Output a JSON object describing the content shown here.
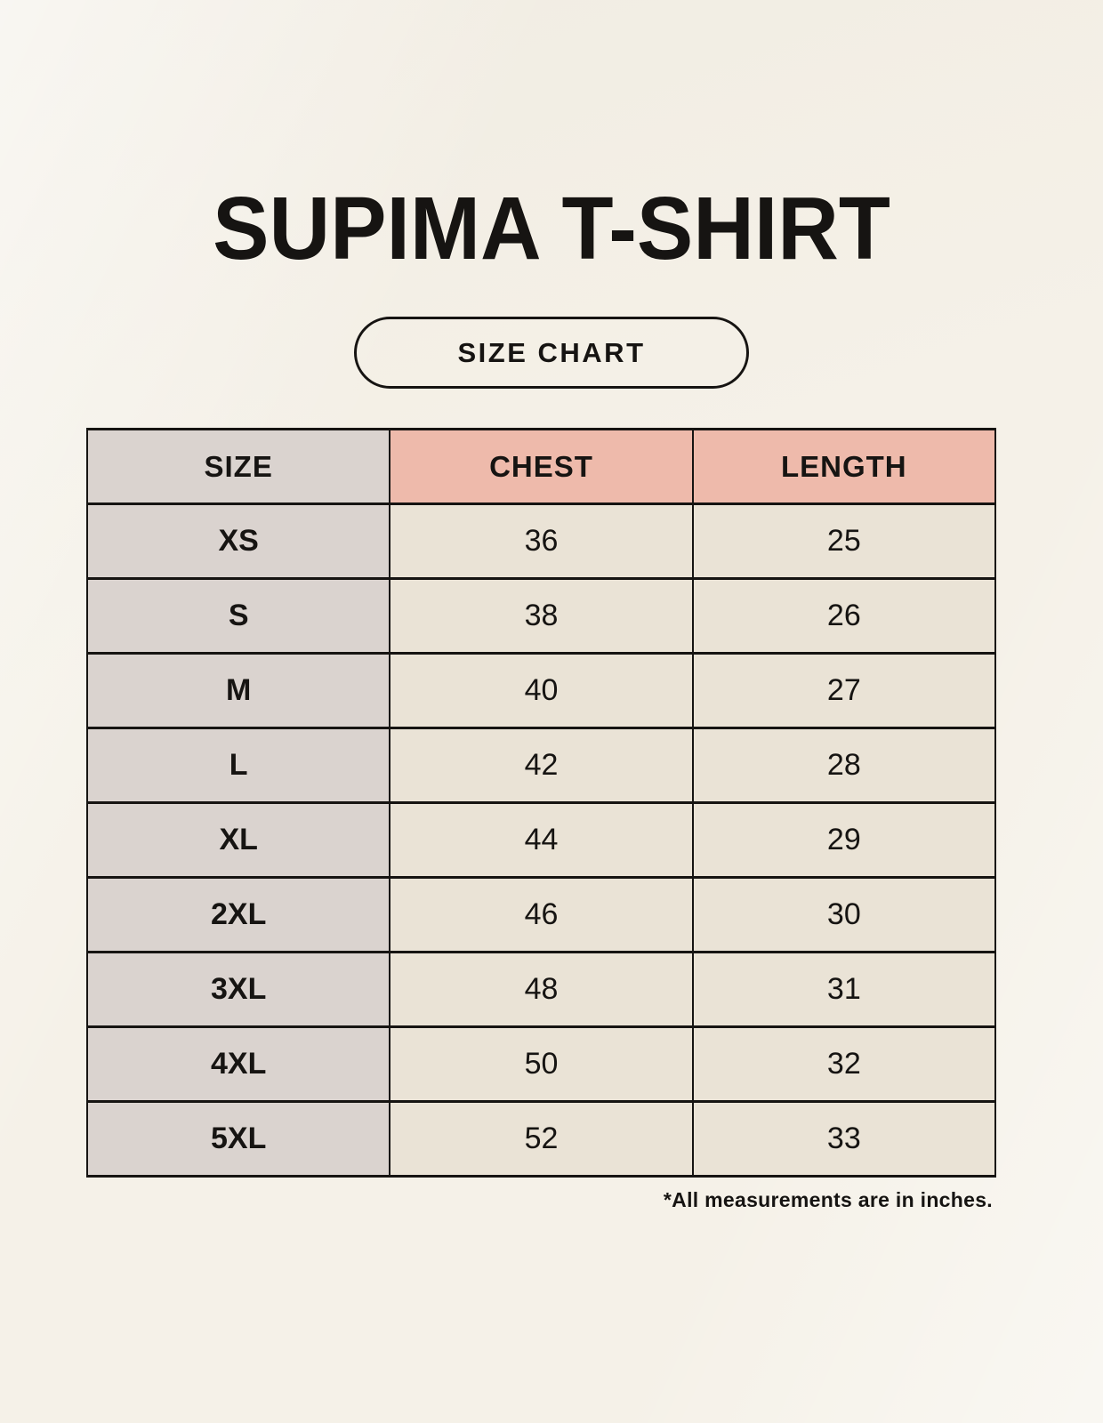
{
  "page": {
    "title": "SUPIMA T-SHIRT",
    "badge_label": "SIZE CHART",
    "footnote": "*All measurements are in inches."
  },
  "colors": {
    "bg": "#f5f1e8",
    "pink": "#eebaab",
    "grey": "#dad3cf",
    "cream": "#eae3d6",
    "ink": "#161412"
  },
  "chart_data": {
    "type": "table",
    "title": "SUPIMA T-SHIRT size chart",
    "units": "inches",
    "headers": [
      "SIZE",
      "CHEST",
      "LENGTH"
    ],
    "rows": [
      [
        "XS",
        "36",
        "25"
      ],
      [
        "S",
        "38",
        "26"
      ],
      [
        "M",
        "40",
        "27"
      ],
      [
        "L",
        "42",
        "28"
      ],
      [
        "XL",
        "44",
        "29"
      ],
      [
        "2XL",
        "46",
        "30"
      ],
      [
        "3XL",
        "48",
        "31"
      ],
      [
        "4XL",
        "50",
        "32"
      ],
      [
        "5XL",
        "52",
        "33"
      ]
    ]
  }
}
